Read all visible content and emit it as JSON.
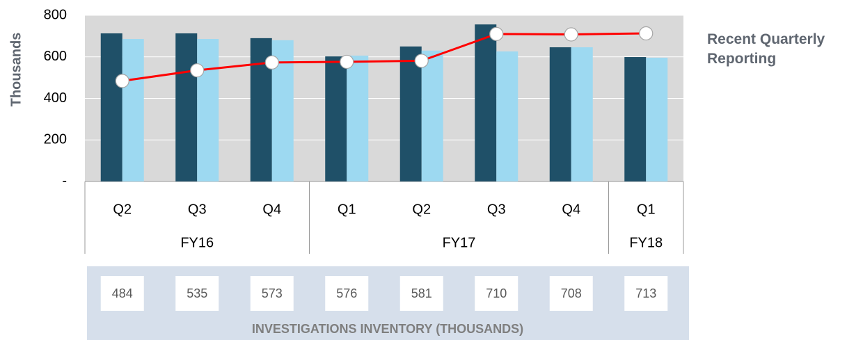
{
  "chart_data": {
    "type": "bar",
    "y_label": "Thousands",
    "annotation": "Recent Quarterly Reporting",
    "category_groups": [
      {
        "label": "FY16",
        "categories": [
          "Q2",
          "Q3",
          "Q4"
        ]
      },
      {
        "label": "FY17",
        "categories": [
          "Q1",
          "Q2",
          "Q3",
          "Q4"
        ]
      },
      {
        "label": "FY18",
        "categories": [
          "Q1"
        ]
      }
    ],
    "series": [
      {
        "type": "bar",
        "color": "#1f5068",
        "values": [
          713,
          713,
          690,
          602,
          650,
          756,
          646,
          599
        ]
      },
      {
        "type": "bar",
        "color": "#9dd9f1",
        "values": [
          686,
          686,
          680,
          606,
          630,
          626,
          646,
          596
        ]
      },
      {
        "type": "line",
        "name": "INVESTIGATIONS INVENTORY (THOUSANDS)",
        "color": "#ff0000",
        "values": [
          484,
          535,
          573,
          576,
          581,
          710,
          708,
          713
        ]
      }
    ],
    "ylim": [
      0,
      800
    ],
    "yticks": [
      {
        "value": 0,
        "label": "-"
      },
      200,
      400,
      600,
      800
    ],
    "grid": true
  }
}
